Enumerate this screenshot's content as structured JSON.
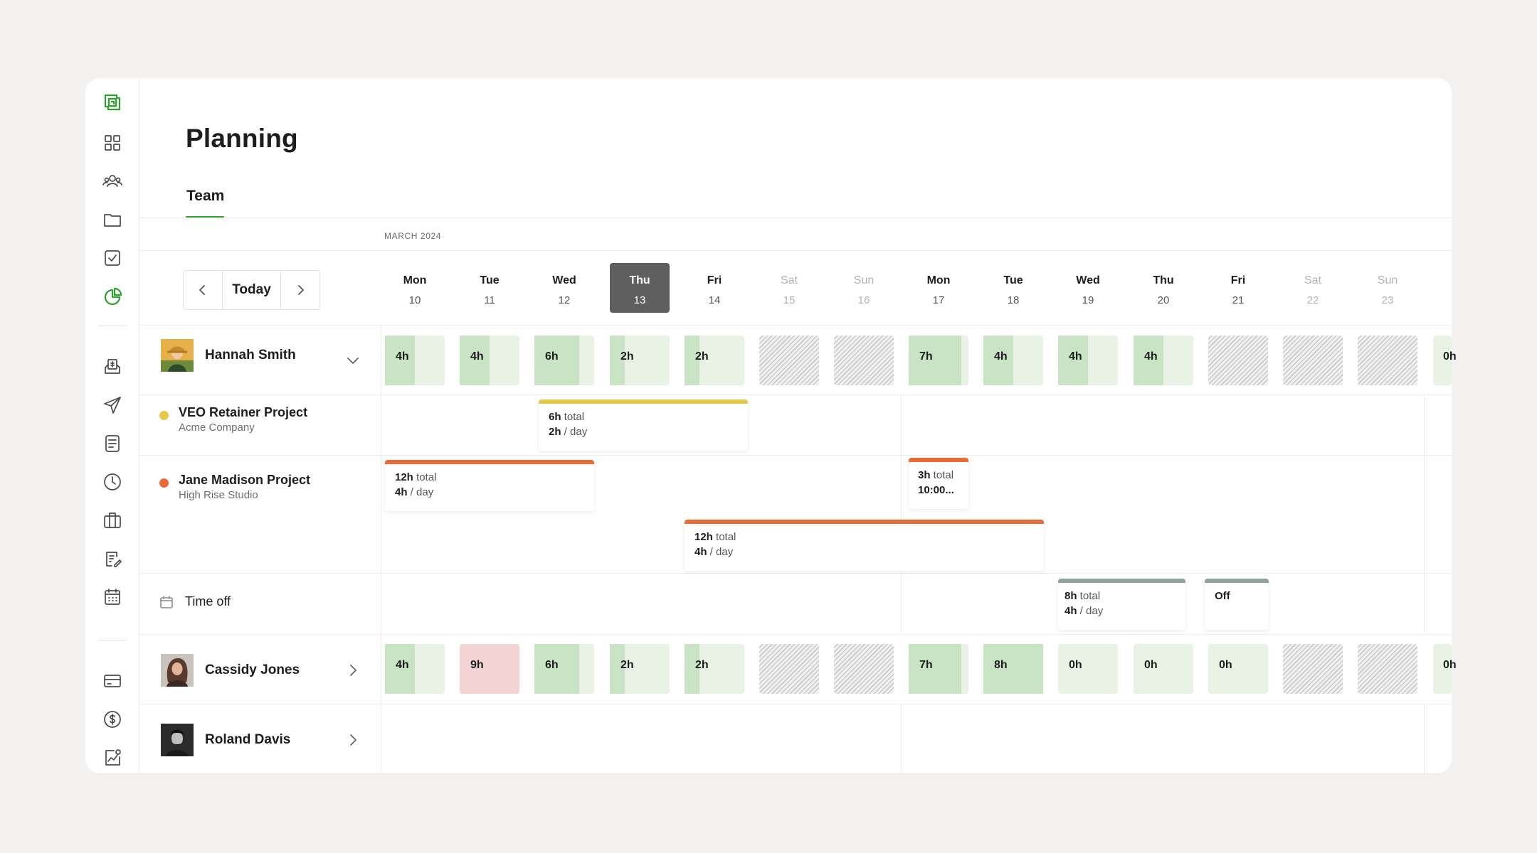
{
  "page": {
    "title": "Planning",
    "tab": "Team"
  },
  "calendar": {
    "month_label": "MARCH 2024",
    "today_button": "Today",
    "days": [
      {
        "name": "Mon",
        "date": "10"
      },
      {
        "name": "Tue",
        "date": "11"
      },
      {
        "name": "Wed",
        "date": "12"
      },
      {
        "name": "Thu",
        "date": "13"
      },
      {
        "name": "Fri",
        "date": "14"
      },
      {
        "name": "Sat",
        "date": "15"
      },
      {
        "name": "Sun",
        "date": "16"
      },
      {
        "name": "Mon",
        "date": "17"
      },
      {
        "name": "Tue",
        "date": "18"
      },
      {
        "name": "Wed",
        "date": "19"
      },
      {
        "name": "Thu",
        "date": "20"
      },
      {
        "name": "Fri",
        "date": "21"
      },
      {
        "name": "Sat",
        "date": "22"
      },
      {
        "name": "Sun",
        "date": "23"
      }
    ]
  },
  "people": [
    {
      "name": "Hannah Smith",
      "cells": [
        {
          "label": "4h",
          "ratio": 0.5
        },
        {
          "label": "4h",
          "ratio": 0.5
        },
        {
          "label": "6h",
          "ratio": 0.75
        },
        {
          "label": "2h",
          "ratio": 0.25
        },
        {
          "label": "2h",
          "ratio": 0.25
        },
        {
          "label": "",
          "weekend": true
        },
        {
          "label": "",
          "weekend": true
        },
        {
          "label": "7h",
          "ratio": 0.875
        },
        {
          "label": "4h",
          "ratio": 0.5
        },
        {
          "label": "4h",
          "ratio": 0.5
        },
        {
          "label": "4h",
          "ratio": 0.5
        },
        {
          "label": "",
          "weekend": true
        },
        {
          "label": "",
          "weekend": true
        },
        {
          "label": "",
          "weekend": true
        }
      ],
      "overflow_label": "0h"
    },
    {
      "name": "Cassidy Jones",
      "cells": [
        {
          "label": "4h",
          "ratio": 0.5
        },
        {
          "label": "9h",
          "over": true
        },
        {
          "label": "6h",
          "ratio": 0.75
        },
        {
          "label": "2h",
          "ratio": 0.25
        },
        {
          "label": "2h",
          "ratio": 0.25
        },
        {
          "label": "",
          "weekend": true
        },
        {
          "label": "",
          "weekend": true
        },
        {
          "label": "7h",
          "ratio": 0.875
        },
        {
          "label": "8h",
          "ratio": 1.0
        },
        {
          "label": "0h",
          "ratio": 0
        },
        {
          "label": "0h",
          "ratio": 0
        },
        {
          "label": "0h",
          "ratio": 0
        },
        {
          "label": "",
          "weekend": true
        },
        {
          "label": "",
          "weekend": true
        }
      ],
      "overflow_label": "0h"
    },
    {
      "name": "Roland Davis"
    }
  ],
  "projects": [
    {
      "name": "VEO Retainer Project",
      "client": "Acme Company",
      "color": "#e6c84a"
    },
    {
      "name": "Jane Madison Project",
      "client": "High Rise Studio",
      "color": "#ea6a35"
    }
  ],
  "allocations": {
    "veo_1": {
      "total": "6h",
      "total_word": " total",
      "daily": "2h",
      "daily_word": " / day",
      "color": "#e6c84a"
    },
    "jane_1": {
      "total": "12h",
      "total_word": " total",
      "daily": "4h",
      "daily_word": " / day",
      "color": "#ea6a35"
    },
    "jane_2": {
      "total": "3h",
      "total_word": " total",
      "daily": "10:00...",
      "color": "#ea6a35"
    },
    "jane_3": {
      "total": "12h",
      "total_word": " total",
      "daily": "4h",
      "daily_word": " / day",
      "color": "#ea6a35"
    },
    "timeoff_1": {
      "total": "8h",
      "total_word": " total",
      "daily": "4h",
      "daily_word": " / day",
      "color": "#8fa39a"
    },
    "timeoff_2": {
      "label": "Off",
      "color": "#8fa39a"
    }
  },
  "time_off_label": "Time off",
  "colors": {
    "accent": "#2fa12f",
    "today_bg": "#5f5f5f",
    "allocated": "#c9e4c5",
    "capacity": "#e8f3e6",
    "overbooked": "#f3d3d3"
  },
  "sidebar_icons": [
    "logo-icon",
    "dashboard-icon",
    "team-icon",
    "folder-icon",
    "tasks-icon",
    "planning-icon",
    "invoice-icon",
    "send-icon",
    "document-icon",
    "clock-icon",
    "briefcase-icon",
    "edit-document-icon",
    "calendar-icon",
    "card-icon",
    "dollar-icon",
    "analytics-icon"
  ]
}
